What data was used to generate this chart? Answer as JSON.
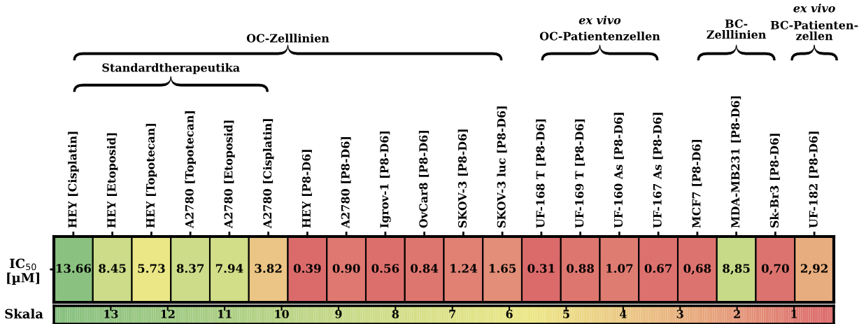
{
  "chart_data": {
    "type": "heatmap",
    "categories": [
      "HEY [Cisplatin]",
      "HEY [Etoposid]",
      "HEY [Topotecan]",
      "A2780 [Topotecan]",
      "A2780 [Etoposid]",
      "A2780 [Cisplatin]",
      "HEY [P8-D6]",
      "A2780 [P8-D6]",
      "Igrov-1 [P8-D6]",
      "OvCar8 [P8-D6]",
      "SKOV-3 [P8-D6]",
      "SKOV-3 luc [P8-D6]",
      "UF-168 T [P8-D6]",
      "UF-169 T [P8-D6]",
      "UF-160 As [P8-D6]",
      "UF-167 As [P8-D6]",
      "MCF7 [P8-D6]",
      "MDA-MB231 [P8-D6]",
      "Sk-Br3 [P8-D6]",
      "UF-182 [P8-D6]"
    ],
    "y_categories": [
      "IC$_{50}$\n[µM]"
    ],
    "cells": [
      [
        13.66,
        8.45,
        5.73,
        8.37,
        7.94,
        3.82,
        0.39,
        0.9,
        0.56,
        0.84,
        1.24,
        1.65,
        0.31,
        0.88,
        1.07,
        0.67,
        0.68,
        8.85,
        0.7,
        2.92
      ]
    ],
    "cell_labels": [
      [
        "13.66",
        "8.45",
        "5.73",
        "8.37",
        "7.94",
        "3.82",
        "0.39",
        "0.90",
        "0.56",
        "0.84",
        "1.24",
        "1.65",
        "0.31",
        "0.88",
        "1.07",
        "0.67",
        "0,68",
        "8,85",
        "0,70",
        "2,92"
      ]
    ],
    "clim": [
      14,
      0.3
    ],
    "cticks": [
      13,
      12,
      11,
      10,
      9,
      8,
      7,
      6,
      5,
      4,
      3,
      2,
      1
    ],
    "clabel": "Skala",
    "annotations": [
      "OC-Zelllinien",
      "Standardtherapeutika",
      "ex vivo",
      "OC-Patientenzellen",
      "BC-\nZelllinien",
      "ex vivo",
      "BC-Patienten-\nzellen"
    ]
  }
}
